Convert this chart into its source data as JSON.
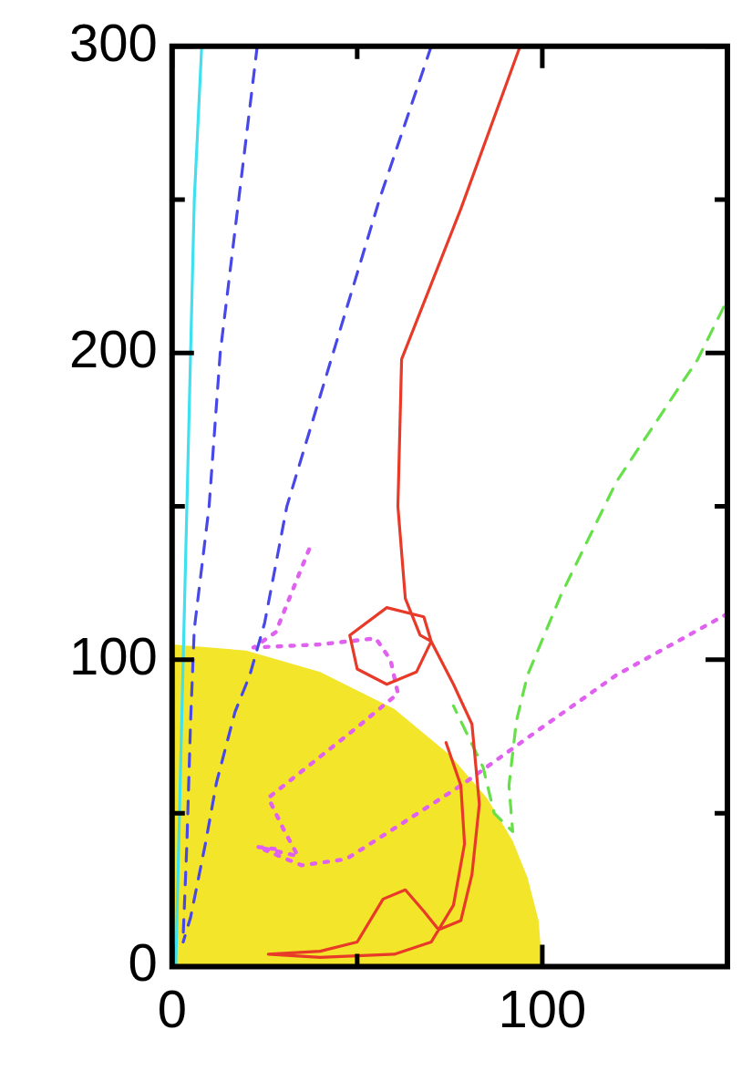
{
  "chart_data": {
    "type": "line",
    "xlim": [
      0,
      150
    ],
    "ylim": [
      0,
      300
    ],
    "xticks": [
      0,
      {
        "value": 50,
        "label": null
      },
      100,
      {
        "value": 150,
        "label": null
      }
    ],
    "yticks": [
      0,
      {
        "value": 50,
        "label": null
      },
      100,
      {
        "value": 150,
        "label": null
      },
      200,
      {
        "value": 250,
        "label": null
      },
      300
    ],
    "grid": false,
    "legend": false,
    "marker": "none",
    "series": [
      {
        "type": "area",
        "color": "#f2e52a",
        "x": [
          0,
          20,
          40,
          60,
          75,
          85,
          92,
          96,
          99,
          100
        ],
        "values": [
          105,
          103,
          96,
          84,
          69,
          55,
          41,
          29,
          15,
          0
        ]
      },
      {
        "type": "line",
        "color": "#40e0f0",
        "line_style": "solid",
        "x": [
          1,
          2,
          3,
          4,
          5,
          6,
          8
        ],
        "values": [
          0,
          50,
          100,
          150,
          200,
          250,
          300
        ]
      },
      {
        "type": "line",
        "color": "#4848e8",
        "line_style": "dashed",
        "x": [
          23,
          18,
          13,
          10,
          6,
          5,
          4,
          3
        ],
        "values": [
          300,
          250,
          200,
          150,
          110,
          80,
          40,
          10
        ]
      },
      {
        "type": "line",
        "color": "#4848e8",
        "line_style": "dashed",
        "x": [
          70,
          56,
          43,
          31,
          25,
          21,
          17,
          12,
          9,
          5,
          3
        ],
        "values": [
          300,
          250,
          198,
          150,
          112,
          95,
          83,
          60,
          40,
          16,
          8
        ]
      },
      {
        "type": "line",
        "color": "#e83a28",
        "line_style": "solid",
        "x": [
          94,
          78,
          62,
          61,
          63,
          67,
          70,
          68,
          58,
          48,
          50,
          58,
          66,
          70,
          76,
          81,
          83,
          81,
          78,
          72,
          68,
          63,
          57,
          50,
          40,
          26,
          40,
          60,
          70,
          76,
          79,
          78,
          74
        ],
        "values": [
          300,
          247,
          198,
          150,
          120,
          108,
          106,
          114,
          117,
          108,
          97,
          92,
          96,
          106,
          92,
          79,
          53,
          30,
          15,
          12,
          18,
          25,
          22,
          8,
          5,
          4,
          3,
          4,
          8,
          20,
          40,
          59,
          73
        ]
      },
      {
        "type": "line",
        "color": "#e060f0",
        "line_style": "dotted",
        "x": [
          37,
          28,
          22,
          40,
          55,
          59,
          61,
          50,
          26,
          30,
          34,
          23,
          30
        ],
        "values": [
          136,
          109,
          104,
          105,
          107,
          100,
          89,
          78,
          55,
          45,
          36,
          39,
          38
        ]
      },
      {
        "type": "line",
        "color": "#e060f0",
        "line_style": "dotted",
        "x": [
          150,
          120,
          100,
          78,
          60,
          47,
          35,
          25
        ],
        "values": [
          115,
          95,
          78,
          59,
          45,
          35,
          33,
          38
        ]
      },
      {
        "type": "line",
        "color": "#66e048",
        "line_style": "dashed",
        "x": [
          149,
          142,
          120,
          105,
          96,
          93,
          91,
          92,
          87,
          84,
          76
        ],
        "values": [
          215,
          198,
          158,
          121,
          95,
          80,
          59,
          44,
          50,
          65,
          85
        ]
      }
    ]
  }
}
